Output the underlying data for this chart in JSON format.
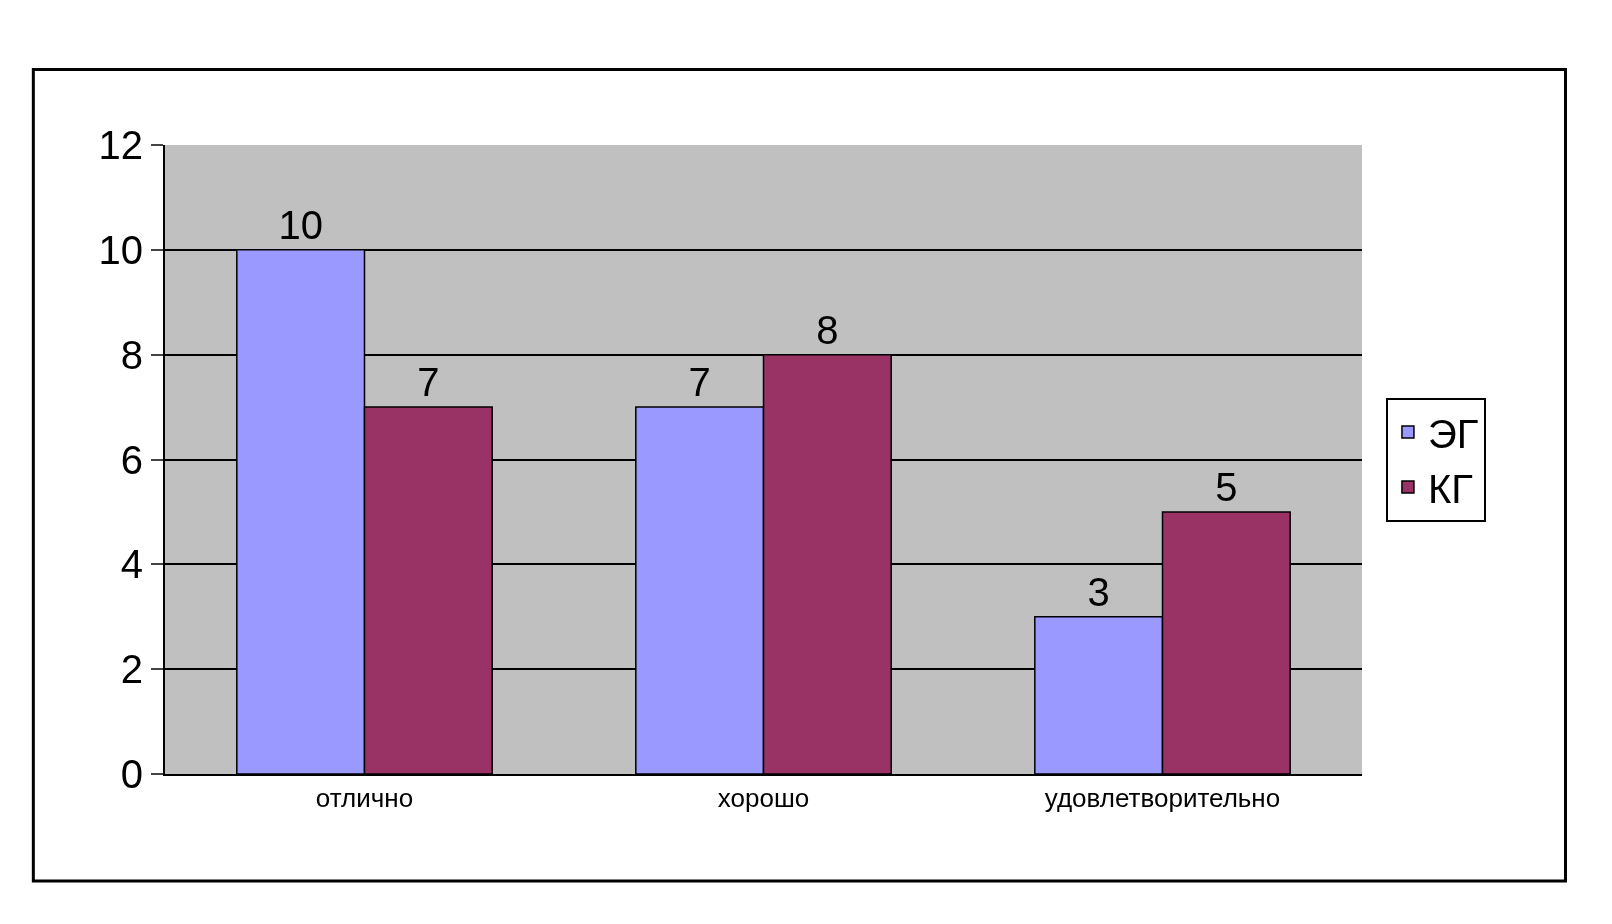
{
  "chart_data": {
    "type": "bar",
    "categories": [
      "отлично",
      "хорошо",
      "удовлетворительно"
    ],
    "series": [
      {
        "name": "ЭГ",
        "color": "#9999ff",
        "values": [
          10,
          7,
          3
        ]
      },
      {
        "name": "КГ",
        "color": "#993366",
        "values": [
          7,
          8,
          5
        ]
      }
    ],
    "ylim": [
      0,
      12
    ],
    "yticks": [
      0,
      2,
      4,
      6,
      8,
      10,
      12
    ],
    "grid": "y",
    "legend": "right",
    "data_labels": true
  }
}
